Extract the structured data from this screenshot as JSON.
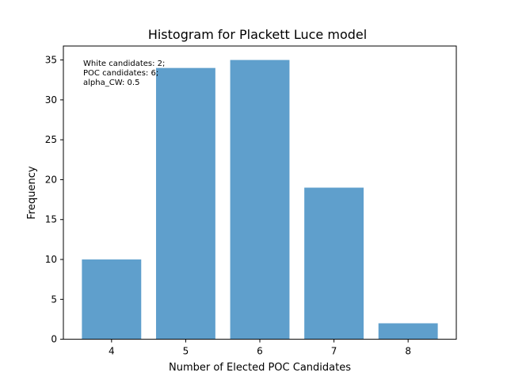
{
  "chart_data": {
    "type": "bar",
    "title": "Histogram for Plackett Luce model",
    "xlabel": "Number of Elected POC Candidates",
    "ylabel": "Frequency",
    "categories": [
      4,
      5,
      6,
      7,
      8
    ],
    "values": [
      10,
      34,
      35,
      19,
      2
    ],
    "xlim": [
      3.35,
      8.65
    ],
    "ylim": [
      0,
      36.75
    ],
    "xticks": [
      4,
      5,
      6,
      7,
      8
    ],
    "yticks": [
      0,
      5,
      10,
      15,
      20,
      25,
      30,
      35
    ],
    "bar_color": "#5f9fcc",
    "grid": false,
    "annotation": [
      "White candidates: 2;",
      "POC candidates: 6;",
      "alpha_CW: 0.5"
    ]
  }
}
